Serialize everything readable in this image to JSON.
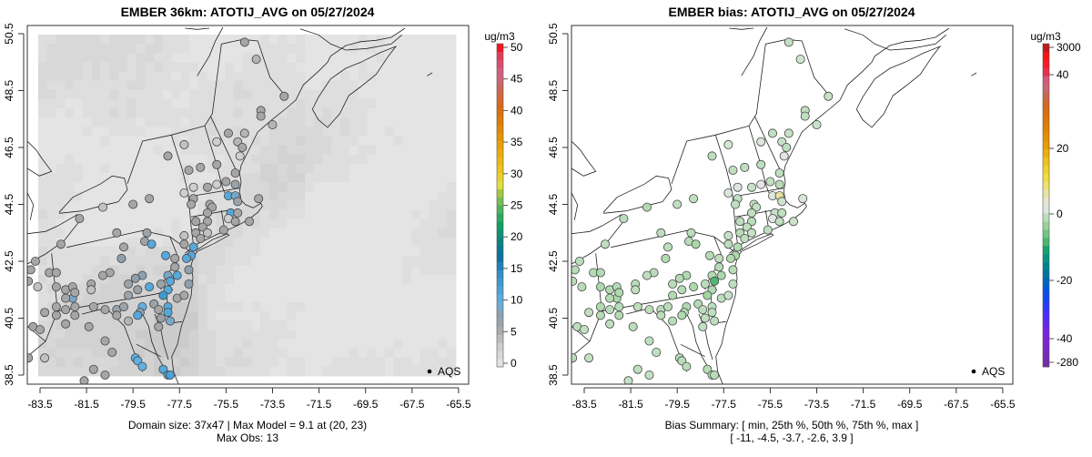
{
  "panels": [
    {
      "title": "EMBER 36km: ATOTIJ_AVG on 05/27/2024",
      "footer_line1": "Domain size: 37x47 | Max Model = 9.1 at (20, 23)",
      "footer_line2": "Max Obs: 13",
      "legend_label": "AQS",
      "colorbar": {
        "units": "ug/m3",
        "ticks": [
          "50",
          "45",
          "40",
          "35",
          "30",
          "25",
          "20",
          "15",
          "10",
          "5",
          "0"
        ]
      }
    },
    {
      "title": "EMBER bias: ATOTIJ_AVG on 05/27/2024",
      "footer_line1": "Bias Summary: [ min, 25th %, 50th %, 75th %, max ]",
      "footer_line2": "[ -11,   -4.5,   -3.7,   -2.6,   3.9 ]",
      "legend_label": "AQS",
      "colorbar": {
        "units": "ug/m3",
        "ticks": [
          "3000",
          "40",
          "20",
          "0",
          "-20",
          "-40",
          "-280"
        ]
      }
    }
  ],
  "chart_data": {
    "type": "scatter",
    "x_ticks": [
      "-83.5",
      "-81.5",
      "-79.5",
      "-77.5",
      "-75.5",
      "-73.5",
      "-71.5",
      "-69.5",
      "-67.5",
      "-65.5"
    ],
    "y_ticks": [
      "50.5",
      "48.5",
      "46.5",
      "44.5",
      "42.5",
      "40.5",
      "38.5"
    ],
    "xlim": [
      -83.5,
      -65.5
    ],
    "ylim": [
      38.5,
      50.5
    ],
    "obs_range": [
      0,
      50
    ],
    "bias_range": [
      -280,
      3000
    ],
    "stations_fields": [
      "lon",
      "lat",
      "obs",
      "bias"
    ],
    "stations": [
      [
        -74.7,
        50.2,
        6,
        -3.2
      ],
      [
        -74.2,
        49.6,
        5,
        -2.5
      ],
      [
        -73.0,
        48.3,
        6,
        -3.0
      ],
      [
        -74.0,
        47.8,
        6,
        -3.5
      ],
      [
        -74.0,
        47.6,
        6,
        -3.5
      ],
      [
        -73.5,
        47.3,
        5,
        -2.8
      ],
      [
        -75.4,
        47.0,
        6,
        -3.4
      ],
      [
        -74.7,
        47.0,
        5,
        -3.0
      ],
      [
        -75.9,
        46.7,
        3,
        -1.0
      ],
      [
        -75.0,
        46.7,
        5,
        -3.0
      ],
      [
        -74.8,
        46.5,
        6,
        -3.8
      ],
      [
        -74.9,
        46.2,
        3,
        -0.5
      ],
      [
        -77.3,
        46.6,
        4,
        -2.0
      ],
      [
        -78.0,
        46.2,
        6,
        -3.6
      ],
      [
        -76.6,
        45.8,
        6,
        -3.5
      ],
      [
        -75.9,
        45.9,
        6,
        -3.6
      ],
      [
        -75.1,
        45.6,
        6,
        -3.5
      ],
      [
        -77.1,
        45.7,
        6,
        -3.5
      ],
      [
        -76.9,
        45.1,
        3,
        -0.8
      ],
      [
        -76.3,
        45.1,
        6,
        -3.0
      ],
      [
        -75.9,
        45.2,
        3,
        -0.3
      ],
      [
        -75.5,
        45.3,
        6,
        -3.2
      ],
      [
        -75.1,
        45.2,
        7,
        -4.0
      ],
      [
        -75.4,
        44.8,
        11,
        -1.0
      ],
      [
        -75.1,
        44.8,
        9,
        3.9
      ],
      [
        -75.0,
        44.6,
        7,
        -2.5
      ],
      [
        -77.3,
        44.9,
        3,
        -1.5
      ],
      [
        -76.9,
        44.7,
        6,
        -3.2
      ],
      [
        -77.0,
        44.5,
        6,
        -3.4
      ],
      [
        -76.2,
        44.5,
        6,
        -3.6
      ],
      [
        -76.1,
        44.4,
        6,
        -3.3
      ],
      [
        -76.3,
        44.2,
        6,
        -3.5
      ],
      [
        -74.1,
        44.7,
        6,
        -1.5
      ],
      [
        -75.3,
        44.2,
        11,
        -3.0
      ],
      [
        -75.0,
        44.2,
        6,
        -3.5
      ],
      [
        -75.4,
        44.0,
        3,
        -0.5
      ],
      [
        -75.1,
        43.9,
        6,
        -3.3
      ],
      [
        -74.5,
        43.9,
        6,
        -2.8
      ],
      [
        -75.6,
        43.6,
        6,
        -3.6
      ],
      [
        -76.3,
        43.9,
        6,
        -3.8
      ],
      [
        -76.8,
        43.9,
        6,
        -3.5
      ],
      [
        -76.5,
        43.7,
        6,
        -3.5
      ],
      [
        -76.8,
        43.5,
        6,
        -4.0
      ],
      [
        -76.3,
        43.5,
        4,
        -3.0
      ],
      [
        -76.6,
        43.3,
        6,
        -3.6
      ],
      [
        -77.3,
        43.4,
        4,
        -3.0
      ],
      [
        -77.3,
        43.1,
        6,
        -3.8
      ],
      [
        -76.9,
        43.0,
        11,
        -4.5
      ],
      [
        -77.0,
        42.7,
        11,
        -4.8
      ],
      [
        -77.2,
        42.6,
        11,
        -4.6
      ],
      [
        -77.7,
        42.6,
        6,
        -3.5
      ],
      [
        -78.1,
        42.7,
        11,
        -4.2
      ],
      [
        -77.7,
        42.3,
        6,
        -4.0
      ],
      [
        -78.0,
        42.0,
        9,
        -4.5
      ],
      [
        -78.3,
        41.7,
        7,
        -4.0
      ],
      [
        -77.6,
        42.0,
        11,
        -5.0
      ],
      [
        -77.9,
        41.8,
        11,
        -11
      ],
      [
        -78.0,
        41.5,
        11,
        -4.5
      ],
      [
        -78.2,
        41.3,
        13,
        -5.5
      ],
      [
        -77.6,
        41.2,
        6,
        -3.8
      ],
      [
        -77.1,
        42.2,
        8,
        -4.0
      ],
      [
        -77.1,
        41.7,
        8,
        -3.5
      ],
      [
        -77.3,
        41.3,
        6,
        -3.0
      ],
      [
        -78.8,
        44.7,
        6,
        -3.4
      ],
      [
        -79.5,
        44.5,
        6,
        -3.4
      ],
      [
        -80.8,
        44.4,
        4,
        -4.5
      ],
      [
        -81.8,
        44.0,
        6,
        -3.8
      ],
      [
        -80.2,
        43.5,
        6,
        -3.6
      ],
      [
        -78.9,
        43.5,
        7,
        -3.8
      ],
      [
        -79.0,
        43.2,
        7,
        -4.0
      ],
      [
        -78.7,
        43.1,
        11,
        -5.0
      ],
      [
        -79.9,
        43.0,
        6,
        -3.7
      ],
      [
        -80.0,
        42.6,
        8,
        -4.2
      ],
      [
        -80.5,
        42.1,
        6,
        -4.0
      ],
      [
        -79.1,
        42.0,
        8,
        -4.5
      ],
      [
        -79.4,
        41.9,
        8,
        -4.2
      ],
      [
        -79.7,
        41.7,
        7,
        -4.0
      ],
      [
        -79.3,
        41.5,
        7,
        -4.3
      ],
      [
        -78.8,
        41.6,
        11,
        -4.8
      ],
      [
        -79.7,
        41.3,
        7,
        -4.5
      ],
      [
        -81.3,
        41.7,
        6,
        -4.0
      ],
      [
        -81.3,
        41.5,
        4,
        -3.5
      ],
      [
        -80.8,
        42.0,
        6,
        -3.6
      ],
      [
        -82.6,
        43.1,
        6,
        -3.4
      ],
      [
        -83.7,
        42.5,
        6,
        -3.8
      ],
      [
        -83.9,
        42.2,
        6,
        -4.0
      ],
      [
        -84.0,
        41.8,
        6,
        -3.7
      ],
      [
        -83.6,
        41.6,
        4,
        -4.0
      ],
      [
        -83.1,
        42.1,
        6,
        -4.2
      ],
      [
        -82.8,
        42.1,
        6,
        -4.5
      ],
      [
        -82.8,
        41.6,
        6,
        -5.0
      ],
      [
        -82.4,
        41.5,
        6,
        -4.5
      ],
      [
        -82.1,
        41.6,
        6,
        -4.4
      ],
      [
        -82.1,
        41.2,
        9,
        -5.0
      ],
      [
        -82.0,
        41.4,
        6,
        -4.5
      ],
      [
        -82.4,
        41.2,
        6,
        -4.3
      ],
      [
        -82.8,
        40.9,
        6,
        -4.6
      ],
      [
        -82.8,
        40.6,
        6,
        -4.2
      ],
      [
        -82.0,
        40.9,
        6,
        -4.0
      ],
      [
        -82.4,
        40.8,
        6,
        -4.0
      ],
      [
        -82.0,
        40.6,
        6,
        -4.2
      ],
      [
        -83.3,
        40.7,
        6,
        -3.5
      ],
      [
        -81.2,
        40.9,
        6,
        -3.8
      ],
      [
        -80.7,
        40.8,
        6,
        -3.6
      ],
      [
        -80.2,
        40.8,
        7,
        -4.0
      ],
      [
        -80.2,
        40.6,
        6,
        -3.9
      ],
      [
        -79.9,
        40.9,
        7,
        -4.0
      ],
      [
        -79.1,
        40.9,
        10,
        -4.5
      ],
      [
        -79.2,
        40.7,
        8,
        -4.2
      ],
      [
        -79.3,
        40.6,
        11,
        -4.6
      ],
      [
        -79.7,
        40.4,
        5,
        -4.0
      ],
      [
        -78.6,
        41.0,
        7,
        -4.2
      ],
      [
        -78.4,
        40.8,
        6,
        -3.8
      ],
      [
        -78.3,
        40.5,
        7,
        -3.6
      ],
      [
        -78.4,
        40.2,
        6,
        -3.3
      ],
      [
        -78.0,
        40.9,
        11,
        -3.8
      ],
      [
        -78.0,
        40.7,
        11,
        -3.5
      ],
      [
        -77.9,
        40.4,
        9,
        -3.6
      ],
      [
        -81.4,
        40.2,
        6,
        -3.8
      ],
      [
        -82.4,
        40.3,
        6,
        -3.6
      ],
      [
        -83.8,
        40.2,
        6,
        -3.8
      ],
      [
        -83.5,
        40.1,
        6,
        -3.5
      ],
      [
        -80.7,
        39.7,
        6,
        -3.4
      ],
      [
        -80.4,
        39.3,
        6,
        -3.4
      ],
      [
        -83.3,
        39.1,
        4,
        -3.2
      ],
      [
        -84.0,
        39.1,
        6,
        -3.8
      ],
      [
        -79.4,
        39.1,
        10,
        -4.0
      ],
      [
        -79.3,
        39.0,
        10,
        -3.8
      ],
      [
        -79.1,
        38.8,
        10,
        -3.9
      ],
      [
        -78.2,
        38.7,
        11,
        -4.0
      ],
      [
        -78.0,
        38.5,
        12,
        -4.2
      ],
      [
        -77.9,
        38.5,
        12,
        -4.0
      ],
      [
        -81.2,
        38.7,
        6,
        -3.4
      ],
      [
        -80.7,
        38.5,
        6,
        -3.2
      ],
      [
        -81.6,
        38.3,
        6,
        -3.0
      ]
    ]
  }
}
